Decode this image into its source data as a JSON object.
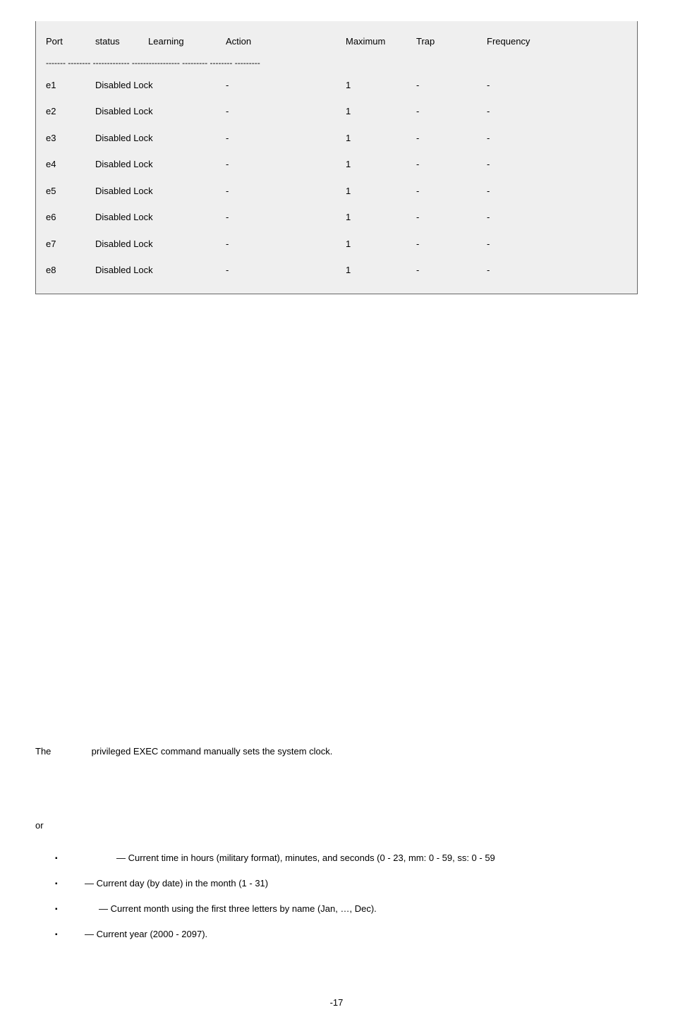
{
  "table": {
    "headers": {
      "port": "Port",
      "status": "status",
      "learning": "Learning",
      "action": "Action",
      "maximum": "Maximum",
      "trap": "Trap",
      "frequency": "Frequency"
    },
    "divider": "------- -------- ------------- ----------------- --------- -------- ---------",
    "rows": [
      {
        "port": "e1",
        "status": "Disabled Lock",
        "action": "-",
        "max": "1",
        "trap": "-",
        "freq": "-"
      },
      {
        "port": "e2",
        "status": "Disabled Lock",
        "action": "-",
        "max": "1",
        "trap": "-",
        "freq": "-"
      },
      {
        "port": "e3",
        "status": "Disabled Lock",
        "action": "-",
        "max": "1",
        "trap": "-",
        "freq": "-"
      },
      {
        "port": "e4",
        "status": "Disabled Lock",
        "action": "-",
        "max": "1",
        "trap": "-",
        "freq": "-"
      },
      {
        "port": "e5",
        "status": "Disabled Lock",
        "action": "-",
        "max": "1",
        "trap": "-",
        "freq": "-"
      },
      {
        "port": "e6",
        "status": "Disabled Lock",
        "action": "-",
        "max": "1",
        "trap": "-",
        "freq": "-"
      },
      {
        "port": "e7",
        "status": "Disabled Lock",
        "action": "-",
        "max": "1",
        "trap": "-",
        "freq": "-"
      },
      {
        "port": "e8",
        "status": "Disabled Lock",
        "action": "-",
        "max": "1",
        "trap": "-",
        "freq": "-"
      }
    ]
  },
  "desc": {
    "prefix": "The",
    "rest": "privileged EXEC command manually sets the system clock."
  },
  "or_label": "or",
  "bullets": [
    "— Current time in hours (military format), minutes, and seconds (0 - 23, mm: 0 - 59, ss: 0 - 59",
    "— Current day (by date) in the month (1 - 31)",
    "— Current month using the first three letters by name (Jan, …, Dec).",
    "— Current year (2000 - 2097)."
  ],
  "bullet_indents": [
    55,
    10,
    30,
    10
  ],
  "footer": "-17"
}
